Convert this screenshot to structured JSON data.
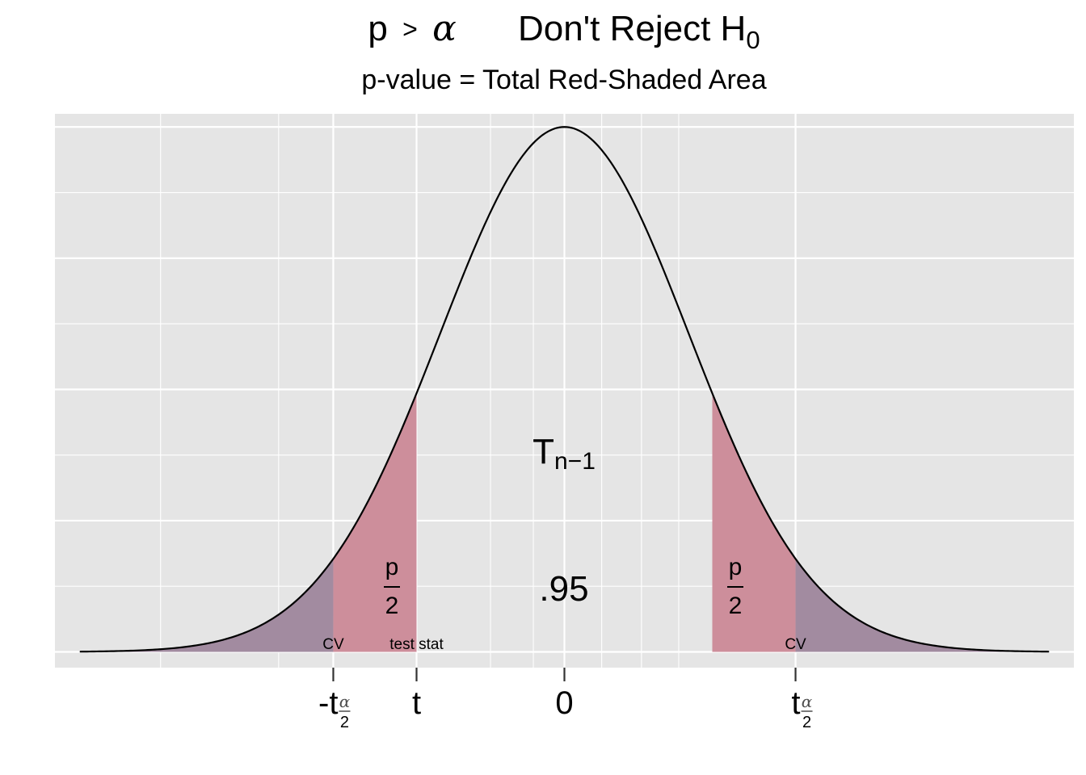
{
  "chart_data": {
    "type": "area",
    "distribution": "t",
    "title": {
      "p": "p",
      "gt": ">",
      "alpha": "α",
      "decision": "Don't Reject H",
      "sub": "0"
    },
    "subtitle": "p-value = Total Red-Shaded Area",
    "xlim": [
      -4.1,
      4.1
    ],
    "ylim": [
      -0.012,
      0.41
    ],
    "grid": true,
    "curve_peak_density": 0.4,
    "critical_value": 1.86,
    "test_statistic": -1.19,
    "center_label": {
      "T": "T",
      "sub": "n−1"
    },
    "center_area_label": ".95",
    "tail_area_label": {
      "num": "p",
      "den": "2"
    },
    "point_labels": {
      "cv_left": "CV",
      "test_stat": "test stat",
      "cv_right": "CV"
    },
    "x_ticks": {
      "neg_cv": {
        "prefix": "-t",
        "frac_num": "α",
        "frac_den": "2"
      },
      "t": "t",
      "zero": "0",
      "pos_cv": {
        "prefix": "t",
        "frac_num": "α",
        "frac_den": "2"
      }
    },
    "colors": {
      "panel": "#e5e5e5",
      "grid": "#ffffff",
      "curve": "#000000",
      "pvalue_fill": "#cd8e9b",
      "rejection_fill": "#a28ba0",
      "axis_text": "#4d4d4d"
    }
  }
}
